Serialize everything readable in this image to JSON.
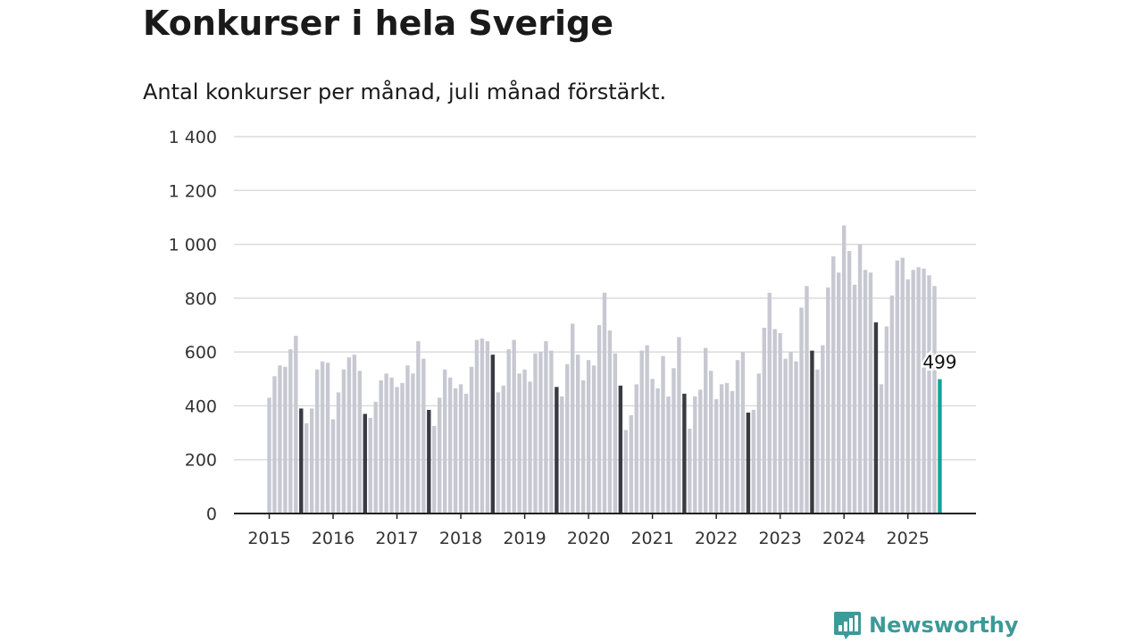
{
  "header": {
    "title": "Konkurser i hela Sverige",
    "subtitle": "Antal konkurser per månad, juli månad förstärkt."
  },
  "brand": {
    "name": "Newsworthy",
    "icon": "bar-chart-speech-icon",
    "color": "#3c9a98"
  },
  "colors": {
    "bar": "#c8c8d2",
    "highlight": "#3a3a42",
    "latest": "#12a39a",
    "grid": "#dcdcdc",
    "axis": "#222222"
  },
  "chart_data": {
    "type": "bar",
    "title": "Konkurser i hela Sverige",
    "subtitle": "Antal konkurser per månad, juli månad förstärkt.",
    "xlabel": "",
    "ylabel": "",
    "ylim": [
      0,
      1400
    ],
    "yticks": [
      0,
      200,
      400,
      600,
      800,
      1000,
      1200,
      1400
    ],
    "ytick_labels": [
      "0",
      "200",
      "400",
      "600",
      "800",
      "1 000",
      "1 200",
      "1 400"
    ],
    "xtick_labels": [
      "2015",
      "2016",
      "2017",
      "2018",
      "2019",
      "2020",
      "2021",
      "2022",
      "2023",
      "2024",
      "2025"
    ],
    "grid": true,
    "highlight_month": "juli",
    "latest_label": "499",
    "series": [
      {
        "year": "2015",
        "values": [
          430,
          510,
          550,
          545,
          610,
          660,
          390,
          335,
          390,
          535,
          565,
          560
        ]
      },
      {
        "year": "2016",
        "values": [
          350,
          450,
          535,
          580,
          590,
          530,
          370,
          355,
          415,
          495,
          520,
          505
        ]
      },
      {
        "year": "2017",
        "values": [
          470,
          485,
          550,
          520,
          640,
          575,
          385,
          325,
          430,
          535,
          505,
          465
        ]
      },
      {
        "year": "2018",
        "values": [
          480,
          445,
          545,
          645,
          650,
          640,
          590,
          450,
          475,
          610,
          645,
          520
        ]
      },
      {
        "year": "2019",
        "values": [
          535,
          490,
          595,
          600,
          640,
          605,
          470,
          435,
          555,
          705,
          590,
          495
        ]
      },
      {
        "year": "2020",
        "values": [
          570,
          550,
          700,
          820,
          680,
          595,
          475,
          310,
          365,
          480,
          605,
          625
        ]
      },
      {
        "year": "2021",
        "values": [
          500,
          465,
          585,
          435,
          540,
          655,
          445,
          315,
          435,
          460,
          615,
          530
        ]
      },
      {
        "year": "2022",
        "values": [
          425,
          480,
          485,
          455,
          570,
          600,
          375,
          385,
          520,
          690,
          820,
          685
        ]
      },
      {
        "year": "2023",
        "values": [
          670,
          575,
          600,
          565,
          765,
          845,
          605,
          535,
          625,
          840,
          955,
          895
        ]
      },
      {
        "year": "2024",
        "values": [
          1070,
          975,
          850,
          1000,
          905,
          895,
          710,
          480,
          695,
          810,
          940,
          950
        ]
      },
      {
        "year": "2025",
        "values": [
          870,
          905,
          915,
          910,
          885,
          845,
          499
        ]
      }
    ]
  }
}
